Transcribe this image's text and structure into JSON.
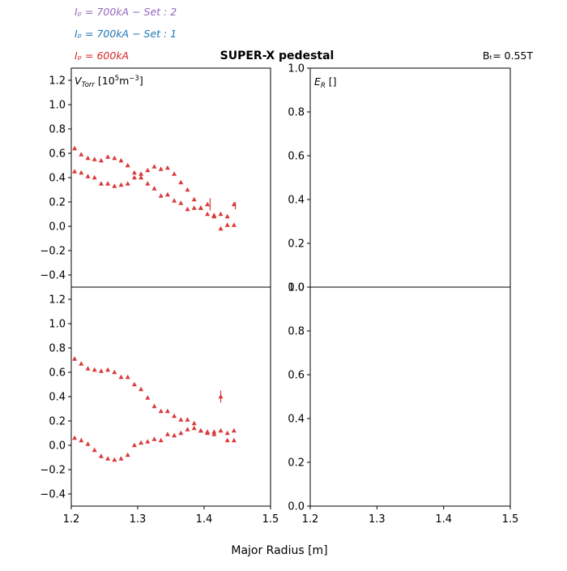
{
  "figure": {
    "title": "SUPER-X pedestal",
    "bt_label": "Bₜ= 0.55T",
    "xlabel": "Major Radius [m]",
    "colors": {
      "set2": "#9467bd",
      "set1": "#1f77b4",
      "red": "#d62728",
      "marker": "#d93a3a"
    }
  },
  "legend": [
    {
      "text": "Iₚ = 700kA − Set : 2",
      "color": "#9467bd"
    },
    {
      "text": "Iₚ = 700kA − Set : 1",
      "color": "#1f77b4"
    },
    {
      "text": "Iₚ = 600kA",
      "color": "#d62728"
    }
  ],
  "chart_data": [
    {
      "type": "scatter",
      "panel": "top-left",
      "label": "V_Torr [10^5 m^-3]",
      "xlim": [
        1.2,
        1.5
      ],
      "ylim": [
        -0.5,
        1.3
      ],
      "xticks": [],
      "yticks": [
        "−0.4",
        "−0.2",
        "0.0",
        "0.2",
        "0.4",
        "0.6",
        "0.8",
        "1.0",
        "1.2"
      ],
      "ytick_values": [
        -0.4,
        -0.2,
        0.0,
        0.2,
        0.4,
        0.6,
        0.8,
        1.0,
        1.2
      ],
      "series": [
        {
          "x": [
            1.205,
            1.215,
            1.225,
            1.235,
            1.245,
            1.255,
            1.265,
            1.275,
            1.285,
            1.295,
            1.305,
            1.315,
            1.325,
            1.335,
            1.345,
            1.355,
            1.365,
            1.375,
            1.385,
            1.395,
            1.405,
            1.415,
            1.425,
            1.435,
            1.445
          ],
          "y": [
            0.64,
            0.59,
            0.56,
            0.55,
            0.54,
            0.57,
            0.56,
            0.54,
            0.5,
            0.44,
            0.43,
            0.46,
            0.49,
            0.47,
            0.48,
            0.43,
            0.36,
            0.3,
            0.22,
            0.15,
            0.18,
            0.08,
            0.1,
            0.08,
            0.18
          ]
        },
        {
          "x": [
            1.205,
            1.215,
            1.225,
            1.235,
            1.245,
            1.255,
            1.265,
            1.275,
            1.285,
            1.295,
            1.305,
            1.315,
            1.325,
            1.335,
            1.345,
            1.355,
            1.365,
            1.375,
            1.385,
            1.395,
            1.405,
            1.415,
            1.425,
            1.435,
            1.445
          ],
          "y": [
            0.45,
            0.44,
            0.41,
            0.4,
            0.35,
            0.35,
            0.33,
            0.34,
            0.35,
            0.4,
            0.4,
            0.35,
            0.31,
            0.25,
            0.26,
            0.21,
            0.19,
            0.14,
            0.15,
            0.15,
            0.1,
            0.09,
            -0.02,
            0.01,
            0.01
          ]
        }
      ],
      "errorbars": [
        {
          "x": 1.409,
          "y": 0.18,
          "err": 0.05
        },
        {
          "x": 1.447,
          "y": 0.17,
          "err": 0.03
        }
      ]
    },
    {
      "type": "scatter",
      "panel": "top-right",
      "label": "E_R []",
      "xlim": [
        1.2,
        1.5
      ],
      "ylim": [
        0.0,
        1.0
      ],
      "xticks": [],
      "yticks": [
        "0.0",
        "0.2",
        "0.4",
        "0.6",
        "0.8",
        "1.0"
      ],
      "ytick_values": [
        0.0,
        0.2,
        0.4,
        0.6,
        0.8,
        1.0
      ],
      "series": [],
      "errorbars": []
    },
    {
      "type": "scatter",
      "panel": "bottom-left",
      "label": "",
      "xlim": [
        1.2,
        1.5
      ],
      "ylim": [
        -0.5,
        1.3
      ],
      "xticks": [
        "1.2",
        "1.3",
        "1.4",
        "1.5"
      ],
      "xtick_values": [
        1.2,
        1.3,
        1.4,
        1.5
      ],
      "yticks": [
        "−0.4",
        "−0.2",
        "0.0",
        "0.2",
        "0.4",
        "0.6",
        "0.8",
        "1.0",
        "1.2"
      ],
      "ytick_values": [
        -0.4,
        -0.2,
        0.0,
        0.2,
        0.4,
        0.6,
        0.8,
        1.0,
        1.2
      ],
      "series": [
        {
          "x": [
            1.205,
            1.215,
            1.225,
            1.235,
            1.245,
            1.255,
            1.265,
            1.275,
            1.285,
            1.295,
            1.305,
            1.315,
            1.325,
            1.335,
            1.345,
            1.355,
            1.365,
            1.375,
            1.385,
            1.395,
            1.405,
            1.415,
            1.425,
            1.435,
            1.445
          ],
          "y": [
            0.71,
            0.67,
            0.63,
            0.62,
            0.61,
            0.62,
            0.6,
            0.56,
            0.56,
            0.5,
            0.46,
            0.39,
            0.32,
            0.28,
            0.28,
            0.24,
            0.21,
            0.21,
            0.18,
            0.12,
            0.11,
            0.11,
            0.4,
            0.1,
            0.12
          ]
        },
        {
          "x": [
            1.205,
            1.215,
            1.225,
            1.235,
            1.245,
            1.255,
            1.265,
            1.275,
            1.285,
            1.295,
            1.305,
            1.315,
            1.325,
            1.335,
            1.345,
            1.355,
            1.365,
            1.375,
            1.385,
            1.395,
            1.405,
            1.415,
            1.425,
            1.435,
            1.445
          ],
          "y": [
            0.06,
            0.04,
            0.01,
            -0.04,
            -0.09,
            -0.11,
            -0.12,
            -0.11,
            -0.08,
            0.0,
            0.02,
            0.03,
            0.05,
            0.04,
            0.09,
            0.08,
            0.1,
            0.13,
            0.14,
            0.12,
            0.1,
            0.09,
            0.12,
            0.04,
            0.04
          ]
        }
      ],
      "errorbars": [
        {
          "x": 1.425,
          "y": 0.4,
          "err": 0.05
        }
      ]
    },
    {
      "type": "scatter",
      "panel": "bottom-right",
      "label": "",
      "xlim": [
        1.2,
        1.5
      ],
      "ylim": [
        0.0,
        1.0
      ],
      "xticks": [
        "1.2",
        "1.3",
        "1.4",
        "1.5"
      ],
      "xtick_values": [
        1.2,
        1.3,
        1.4,
        1.5
      ],
      "yticks": [
        "0.0",
        "0.2",
        "0.4",
        "0.6",
        "0.8",
        "1.0"
      ],
      "ytick_values": [
        0.0,
        0.2,
        0.4,
        0.6,
        0.8,
        1.0
      ],
      "series": [],
      "errorbars": []
    }
  ]
}
